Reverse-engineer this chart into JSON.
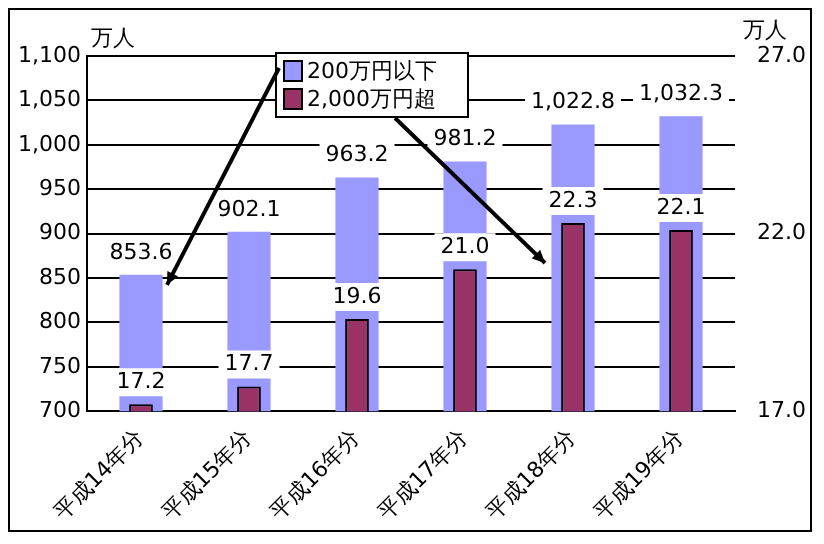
{
  "chart_data": {
    "type": "bar",
    "ylabel": "万人",
    "y2label": "万人",
    "categories": [
      "平成14年分",
      "平成15年分",
      "平成16年分",
      "平成17年分",
      "平成18年分",
      "平成19年分"
    ],
    "series": [
      {
        "name": "200万円以下",
        "color": "#9999ff",
        "values": [
          853.6,
          902.1,
          963.2,
          981.2,
          1022.8,
          1032.3
        ],
        "value_labels": [
          "853.6",
          "902.1",
          "963.2",
          "981.2",
          "1,022.8",
          "1,032.3"
        ]
      },
      {
        "name": "2,000万円超",
        "color": "#993366",
        "axis": "y2",
        "values": [
          17.2,
          17.7,
          19.6,
          21.0,
          22.3,
          22.1
        ],
        "value_labels": [
          "17.2",
          "17.7",
          "19.6",
          "21.0",
          "22.3",
          "22.1"
        ]
      }
    ],
    "ylim": [
      700,
      1100
    ],
    "yticks": [
      700,
      750,
      800,
      850,
      900,
      950,
      {
        "value": 1000,
        "label": "1,000"
      },
      {
        "value": 1050,
        "label": "1,050"
      },
      {
        "value": 1100,
        "label": "1,100"
      }
    ],
    "y2lim": [
      17,
      27
    ],
    "y2ticks": [
      {
        "value": 17,
        "label": "17.0"
      },
      {
        "value": 22,
        "label": "22.0"
      },
      {
        "value": 27,
        "label": "27.0"
      }
    ],
    "grid": "y",
    "legend": "top",
    "data_labels": true
  }
}
